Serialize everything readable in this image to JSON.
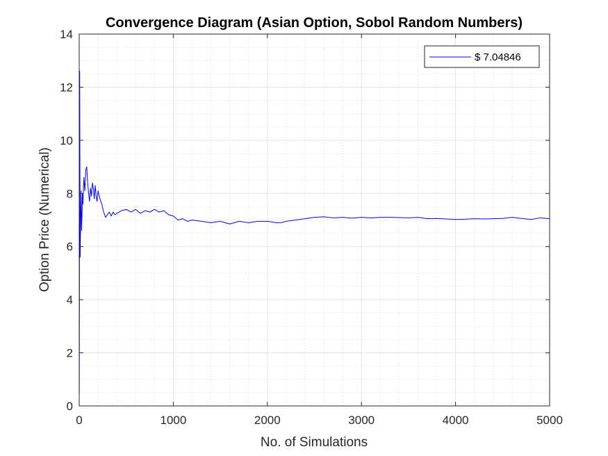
{
  "chart_data": {
    "type": "line",
    "title": "Convergence Diagram (Asian Option, Sobol Random Numbers)",
    "xlabel": "No. of Simulations",
    "ylabel": "Option Price (Numerical)",
    "xlim": [
      0,
      5000
    ],
    "ylim": [
      0,
      14
    ],
    "xticks": [
      0,
      1000,
      2000,
      3000,
      4000,
      5000
    ],
    "yticks": [
      0,
      2,
      4,
      6,
      8,
      10,
      12,
      14
    ],
    "grid": true,
    "minor_grid": true,
    "legend_position": "top-right",
    "series": [
      {
        "name": "$ 7.04846",
        "color": "#0000ff",
        "x": [
          1,
          5,
          10,
          15,
          20,
          25,
          30,
          35,
          40,
          45,
          50,
          60,
          70,
          80,
          90,
          100,
          110,
          120,
          130,
          140,
          150,
          160,
          170,
          180,
          190,
          200,
          220,
          240,
          260,
          280,
          300,
          320,
          340,
          360,
          380,
          400,
          450,
          500,
          550,
          600,
          650,
          700,
          750,
          800,
          850,
          900,
          950,
          1000,
          1050,
          1100,
          1150,
          1200,
          1300,
          1400,
          1500,
          1600,
          1700,
          1800,
          1900,
          2000,
          2100,
          2150,
          2200,
          2300,
          2400,
          2500,
          2600,
          2700,
          2800,
          2900,
          3000,
          3100,
          3200,
          3300,
          3400,
          3500,
          3600,
          3700,
          3800,
          3900,
          4000,
          4100,
          4200,
          4300,
          4400,
          4500,
          4600,
          4700,
          4800,
          4900,
          5000
        ],
        "y": [
          0.5,
          12.6,
          5.6,
          7.0,
          8.1,
          6.6,
          7.2,
          8.0,
          7.6,
          8.2,
          8.6,
          8.1,
          8.9,
          9.0,
          8.4,
          8.0,
          7.7,
          8.2,
          7.9,
          8.4,
          8.2,
          7.8,
          8.3,
          7.9,
          7.7,
          8.1,
          7.8,
          7.6,
          7.3,
          7.1,
          7.2,
          7.3,
          7.15,
          7.3,
          7.2,
          7.25,
          7.35,
          7.4,
          7.3,
          7.4,
          7.25,
          7.35,
          7.3,
          7.4,
          7.3,
          7.35,
          7.2,
          7.15,
          7.0,
          7.05,
          6.95,
          7.0,
          6.95,
          6.9,
          6.95,
          6.85,
          6.95,
          6.9,
          6.95,
          6.95,
          6.9,
          6.9,
          6.95,
          7.0,
          7.05,
          7.1,
          7.12,
          7.08,
          7.1,
          7.07,
          7.1,
          7.08,
          7.1,
          7.1,
          7.09,
          7.08,
          7.1,
          7.05,
          7.06,
          7.04,
          7.02,
          7.03,
          7.05,
          7.04,
          7.05,
          7.06,
          7.1,
          7.06,
          7.02,
          7.08,
          7.05
        ]
      }
    ]
  }
}
